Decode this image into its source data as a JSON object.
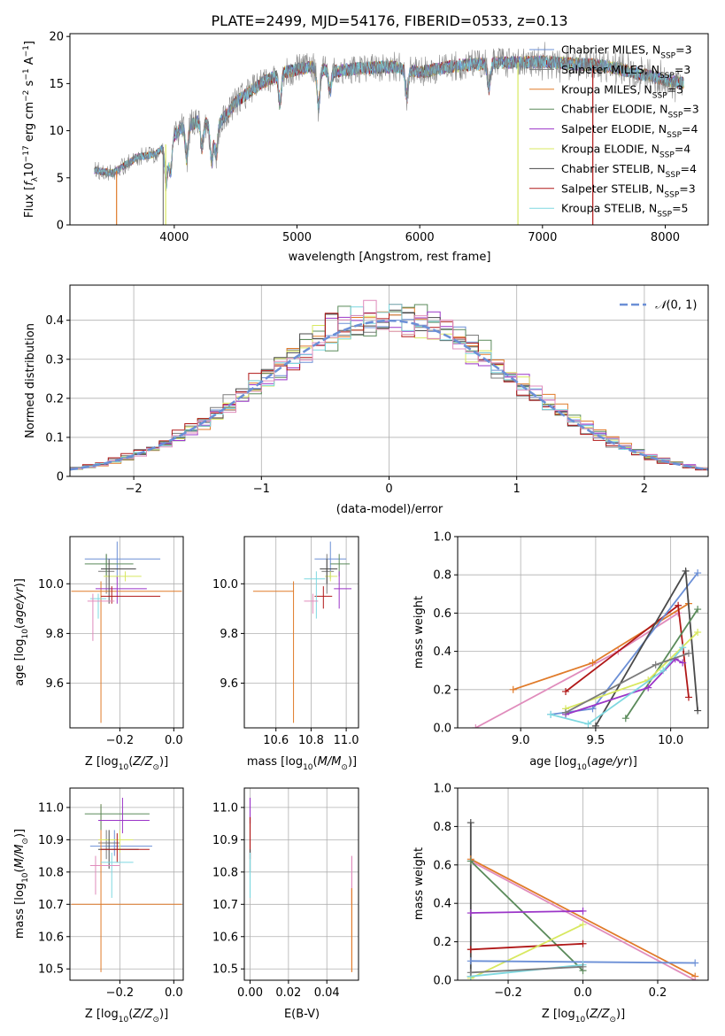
{
  "title": "PLATE=2499, MJD=54176, FIBERID=0533, z=0.13",
  "colors": {
    "chabrier_miles": "#6b8fd6",
    "salpeter_miles": "#7b7b7b",
    "kroupa_miles": "#e07b2a",
    "chabrier_elodie": "#5a8a5a",
    "salpeter_elodie": "#9b35c8",
    "kroupa_elodie": "#d8e860",
    "chabrier_stelib": "#4a4a4a",
    "salpeter_stelib": "#b01818",
    "kroupa_stelib": "#7ed8e0",
    "pink": "#e08cbc",
    "normal": "#6b8fd6"
  },
  "chart_data": [
    {
      "type": "line",
      "id": "spectrum",
      "xlabel": "wavelength [Angstrom, rest frame]",
      "ylabel": "Flux [f_λ10^-17 erg cm^-2 s^-1 A^-1]",
      "xlim": [
        3150,
        8350
      ],
      "ylim": [
        0,
        20.3
      ],
      "xticks": [
        4000,
        5000,
        6000,
        7000,
        8000
      ],
      "yticks": [
        0,
        5,
        10,
        15,
        20
      ],
      "legend_position": "top-right",
      "series": [
        {
          "name": "Chabrier MILES, N_SSP=3"
        },
        {
          "name": "Salpeter MILES, N_SSP=3"
        },
        {
          "name": "Kroupa MILES, N_SSP=3"
        },
        {
          "name": "Chabrier ELODIE, N_SSP=3"
        },
        {
          "name": "Salpeter ELODIE, N_SSP=4"
        },
        {
          "name": "Kroupa ELODIE, N_SSP=4"
        },
        {
          "name": "Chabrier STELIB, N_SSP=4"
        },
        {
          "name": "Salpeter STELIB, N_SSP=3"
        },
        {
          "name": "Kroupa STELIB, N_SSP=5"
        }
      ],
      "continuum": [
        [
          3350,
          5.8
        ],
        [
          3500,
          5.5
        ],
        [
          3700,
          7.2
        ],
        [
          3850,
          7.5
        ],
        [
          3950,
          8.8
        ],
        [
          4050,
          10.2
        ],
        [
          4200,
          11.0
        ],
        [
          4350,
          10.5
        ],
        [
          4500,
          13.0
        ],
        [
          4700,
          15.0
        ],
        [
          4900,
          16.2
        ],
        [
          5100,
          16.8
        ],
        [
          5300,
          16.3
        ],
        [
          5500,
          16.6
        ],
        [
          5800,
          16.8
        ],
        [
          6000,
          16.2
        ],
        [
          6300,
          16.9
        ],
        [
          6600,
          17.2
        ],
        [
          7000,
          17.3
        ],
        [
          7500,
          16.9
        ],
        [
          7800,
          16.0
        ],
        [
          8000,
          15.4
        ],
        [
          8150,
          15.0
        ]
      ],
      "dips": [
        [
          3934,
          4.2
        ],
        [
          3969,
          3.5
        ],
        [
          4102,
          3.2
        ],
        [
          4226,
          2.5
        ],
        [
          4305,
          3.8
        ],
        [
          4341,
          3.0
        ],
        [
          4861,
          3.0
        ],
        [
          5175,
          4.0
        ],
        [
          5270,
          2.0
        ],
        [
          5895,
          2.8
        ],
        [
          6563,
          2.5
        ]
      ],
      "glitches": [
        [
          3530,
          "kroupa_miles"
        ],
        [
          3910,
          "salpeter_miles"
        ],
        [
          3930,
          "kroupa_elodie"
        ],
        [
          6800,
          "kroupa_elodie"
        ],
        [
          7410,
          "salpeter_stelib"
        ]
      ]
    },
    {
      "type": "bar",
      "id": "residual-histogram",
      "xlabel": "(data-model)/error",
      "ylabel": "Normed distribution",
      "xlim": [
        -2.5,
        2.5
      ],
      "ylim": [
        0,
        0.49
      ],
      "xticks": [
        -2,
        -1,
        0,
        1,
        2
      ],
      "yticks": [
        0.0,
        0.1,
        0.2,
        0.3,
        0.4
      ],
      "legend_position": "top-right",
      "legend": "N(0,1)",
      "bin_width": 0.1
    },
    {
      "type": "scatter",
      "id": "age-vs-Z",
      "xlabel": "Z [log10(Z/Z_sun)]",
      "ylabel": "age  [log10(age/yr)]",
      "xlim": [
        -0.385,
        0.035
      ],
      "ylim": [
        9.42,
        10.19
      ],
      "xticks": [
        -0.2,
        0.0
      ],
      "yticks": [
        9.6,
        9.8,
        10.0
      ],
      "points": [
        {
          "c": "chabrier_miles",
          "x": -0.21,
          "y": 10.1,
          "xe": [
            -0.33,
            -0.05
          ],
          "ye": [
            10.02,
            10.17
          ]
        },
        {
          "c": "salpeter_miles",
          "x": -0.25,
          "y": 10.05,
          "xe": [
            -0.28,
            -0.22
          ],
          "ye": [
            9.96,
            10.12
          ]
        },
        {
          "c": "kroupa_miles",
          "x": -0.27,
          "y": 9.97,
          "xe": [
            -0.38,
            0.03
          ],
          "ye": [
            9.44,
            10.01
          ]
        },
        {
          "c": "chabrier_elodie",
          "x": -0.25,
          "y": 10.08,
          "xe": [
            -0.33,
            -0.15
          ],
          "ye": [
            10.03,
            10.12
          ]
        },
        {
          "c": "salpeter_elodie",
          "x": -0.21,
          "y": 9.98,
          "xe": [
            -0.29,
            -0.1
          ],
          "ye": [
            9.92,
            10.03
          ]
        },
        {
          "c": "kroupa_elodie",
          "x": -0.18,
          "y": 10.03,
          "xe": [
            -0.26,
            -0.12
          ],
          "ye": [
            10.01,
            10.05
          ]
        },
        {
          "c": "chabrier_stelib",
          "x": -0.24,
          "y": 10.06,
          "xe": [
            -0.27,
            -0.14
          ],
          "ye": [
            9.92,
            10.1
          ]
        },
        {
          "c": "salpeter_stelib",
          "x": -0.23,
          "y": 9.95,
          "xe": [
            -0.27,
            -0.05
          ],
          "ye": [
            9.92,
            9.99
          ]
        },
        {
          "c": "kroupa_stelib",
          "x": -0.28,
          "y": 9.94,
          "xe": [
            -0.31,
            -0.25
          ],
          "ye": [
            9.86,
            9.96
          ]
        },
        {
          "c": "pink",
          "x": -0.3,
          "y": 9.93,
          "xe": [
            -0.32,
            -0.22
          ],
          "ye": [
            9.77,
            9.96
          ]
        }
      ]
    },
    {
      "type": "scatter",
      "id": "age-vs-mass",
      "xlabel": "mass [log10(M/M_sun)]",
      "ylabel": "",
      "xlim": [
        10.42,
        11.07
      ],
      "ylim": [
        9.42,
        10.19
      ],
      "xticks": [
        10.6,
        10.8,
        11.0
      ],
      "yticks": [
        9.6,
        9.8,
        10.0
      ],
      "points": [
        {
          "c": "chabrier_miles",
          "x": 10.91,
          "y": 10.1,
          "xe": [
            10.82,
            11.0
          ],
          "ye": [
            10.02,
            10.17
          ]
        },
        {
          "c": "salpeter_miles",
          "x": 10.89,
          "y": 10.05,
          "xe": [
            10.86,
            10.93
          ],
          "ye": [
            9.96,
            10.12
          ]
        },
        {
          "c": "kroupa_miles",
          "x": 10.7,
          "y": 9.97,
          "xe": [
            10.47,
            10.7
          ],
          "ye": [
            9.44,
            10.01
          ]
        },
        {
          "c": "chabrier_elodie",
          "x": 10.96,
          "y": 10.08,
          "xe": [
            10.91,
            11.02
          ],
          "ye": [
            10.03,
            10.12
          ]
        },
        {
          "c": "salpeter_elodie",
          "x": 10.96,
          "y": 9.98,
          "xe": [
            10.93,
            11.03
          ],
          "ye": [
            9.9,
            10.05
          ]
        },
        {
          "c": "kroupa_elodie",
          "x": 10.91,
          "y": 10.03,
          "xe": [
            10.88,
            10.95
          ],
          "ye": [
            10.01,
            10.05
          ]
        },
        {
          "c": "chabrier_stelib",
          "x": 10.89,
          "y": 10.06,
          "xe": [
            10.85,
            10.95
          ],
          "ye": [
            10.0,
            10.1
          ]
        },
        {
          "c": "salpeter_stelib",
          "x": 10.87,
          "y": 9.95,
          "xe": [
            10.82,
            10.92
          ],
          "ye": [
            9.9,
            9.99
          ]
        },
        {
          "c": "kroupa_stelib",
          "x": 10.83,
          "y": 10.02,
          "xe": [
            10.76,
            10.88
          ],
          "ye": [
            9.86,
            10.05
          ]
        },
        {
          "c": "pink",
          "x": 10.81,
          "y": 9.93,
          "xe": [
            10.76,
            10.84
          ],
          "ye": [
            9.88,
            9.96
          ]
        }
      ]
    },
    {
      "type": "line",
      "id": "weight-vs-age",
      "xlabel": "age  [log10(age/yr)]",
      "ylabel": "mass weight",
      "xlim": [
        8.58,
        10.25
      ],
      "ylim": [
        0,
        1.0
      ],
      "xticks": [
        9.0,
        9.5,
        10.0
      ],
      "yticks": [
        0.0,
        0.2,
        0.4,
        0.6,
        0.8,
        1.0
      ],
      "series": [
        {
          "c": "pink",
          "points": [
            [
              8.7,
              0.0
            ],
            [
              9.65,
              0.4
            ],
            [
              10.05,
              0.6
            ]
          ]
        },
        {
          "c": "kroupa_miles",
          "points": [
            [
              8.95,
              0.2
            ],
            [
              9.48,
              0.34
            ],
            [
              10.12,
              0.65
            ]
          ]
        },
        {
          "c": "salpeter_stelib",
          "points": [
            [
              9.3,
              0.19
            ],
            [
              10.05,
              0.64
            ],
            [
              10.12,
              0.16
            ]
          ]
        },
        {
          "c": "chabrier_miles",
          "points": [
            [
              9.2,
              0.07
            ],
            [
              9.48,
              0.1
            ],
            [
              10.18,
              0.81
            ]
          ]
        },
        {
          "c": "chabrier_stelib",
          "points": [
            [
              9.5,
              0.01
            ],
            [
              10.1,
              0.82
            ],
            [
              10.18,
              0.09
            ]
          ]
        },
        {
          "c": "chabrier_elodie",
          "points": [
            [
              9.7,
              0.05
            ],
            [
              10.18,
              0.62
            ]
          ]
        },
        {
          "c": "salpeter_elodie",
          "points": [
            [
              9.3,
              0.07
            ],
            [
              9.85,
              0.21
            ],
            [
              10.03,
              0.36
            ],
            [
              10.08,
              0.34
            ]
          ]
        },
        {
          "c": "kroupa_elodie",
          "points": [
            [
              9.3,
              0.1
            ],
            [
              9.85,
              0.25
            ],
            [
              10.18,
              0.5
            ]
          ]
        },
        {
          "c": "kroupa_stelib",
          "points": [
            [
              9.2,
              0.07
            ],
            [
              9.45,
              0.02
            ],
            [
              9.95,
              0.3
            ],
            [
              10.08,
              0.42
            ]
          ]
        },
        {
          "c": "salpeter_miles",
          "points": [
            [
              9.3,
              0.08
            ],
            [
              9.9,
              0.33
            ],
            [
              10.12,
              0.39
            ]
          ]
        }
      ]
    },
    {
      "type": "scatter",
      "id": "mass-vs-Z",
      "xlabel": "Z [log10(Z/Z_sun)]",
      "ylabel": "mass [log10(M/M_sun)]",
      "xlim": [
        -0.385,
        0.035
      ],
      "ylim": [
        10.465,
        11.06
      ],
      "xticks": [
        -0.2,
        0.0
      ],
      "yticks": [
        10.5,
        10.6,
        10.7,
        10.8,
        10.9,
        11.0
      ],
      "points": [
        {
          "c": "chabrier_miles",
          "x": -0.22,
          "y": 10.88,
          "xe": [
            -0.31,
            -0.08
          ],
          "ye": [
            10.85,
            10.93
          ]
        },
        {
          "c": "salpeter_miles",
          "x": -0.25,
          "y": 10.89,
          "xe": [
            -0.28,
            -0.2
          ],
          "ye": [
            10.84,
            10.93
          ]
        },
        {
          "c": "kroupa_miles",
          "x": -0.27,
          "y": 10.7,
          "xe": [
            -0.38,
            0.03
          ],
          "ye": [
            10.49,
            11.01
          ]
        },
        {
          "c": "chabrier_elodie",
          "x": -0.27,
          "y": 10.98,
          "xe": [
            -0.33,
            -0.09
          ],
          "ye": [
            10.93,
            11.01
          ]
        },
        {
          "c": "salpeter_elodie",
          "x": -0.19,
          "y": 10.96,
          "xe": [
            -0.28,
            -0.09
          ],
          "ye": [
            10.92,
            11.03
          ]
        },
        {
          "c": "kroupa_elodie",
          "x": -0.2,
          "y": 10.9,
          "xe": [
            -0.28,
            -0.15
          ],
          "ye": [
            10.86,
            10.93
          ]
        },
        {
          "c": "chabrier_stelib",
          "x": -0.24,
          "y": 10.87,
          "xe": [
            -0.28,
            -0.13
          ],
          "ye": [
            10.81,
            10.93
          ]
        },
        {
          "c": "salpeter_stelib",
          "x": -0.21,
          "y": 10.87,
          "xe": [
            -0.27,
            -0.09
          ],
          "ye": [
            10.83,
            10.92
          ]
        },
        {
          "c": "kroupa_stelib",
          "x": -0.23,
          "y": 10.83,
          "xe": [
            -0.27,
            -0.15
          ],
          "ye": [
            10.72,
            10.86
          ]
        },
        {
          "c": "pink",
          "x": -0.29,
          "y": 10.82,
          "xe": [
            -0.31,
            -0.2
          ],
          "ye": [
            10.73,
            10.85
          ]
        }
      ]
    },
    {
      "type": "scatter",
      "id": "mass-vs-EBV",
      "xlabel": "E(B-V)",
      "ylabel": "",
      "xlim": [
        -0.003,
        0.0565
      ],
      "ylim": [
        10.465,
        11.06
      ],
      "xticks": [
        0.0,
        0.02,
        0.04
      ],
      "yticks": [
        10.5,
        10.6,
        10.7,
        10.8,
        10.9,
        11.0
      ],
      "segments": [
        {
          "c": "salpeter_elodie",
          "x": 0.0,
          "ye": [
            10.95,
            11.03
          ]
        },
        {
          "c": "salpeter_stelib",
          "x": 0.0,
          "ye": [
            10.84,
            10.97
          ]
        },
        {
          "c": "chabrier_stelib",
          "x": 0.0,
          "ye": [
            10.8,
            10.87
          ]
        },
        {
          "c": "kroupa_stelib",
          "x": 0.0,
          "ye": [
            10.72,
            10.86
          ]
        },
        {
          "c": "pink",
          "x": 0.053,
          "ye": [
            10.7,
            10.85
          ]
        },
        {
          "c": "kroupa_miles",
          "x": 0.053,
          "ye": [
            10.49,
            10.75
          ]
        }
      ]
    },
    {
      "type": "line",
      "id": "weight-vs-Z",
      "xlabel": "Z [log10(Z/Z_sun)]",
      "ylabel": "mass weight",
      "xlim": [
        -0.335,
        0.335
      ],
      "ylim": [
        0,
        1.0
      ],
      "xticks": [
        -0.2,
        0.0,
        0.2
      ],
      "yticks": [
        0.0,
        0.2,
        0.4,
        0.6,
        0.8,
        1.0
      ],
      "series": [
        {
          "c": "chabrier_stelib",
          "points": [
            [
              -0.3,
              0.82
            ],
            [
              -0.3,
              0.02
            ]
          ]
        },
        {
          "c": "kroupa_miles",
          "points": [
            [
              -0.3,
              0.63
            ],
            [
              0.3,
              0.02
            ]
          ]
        },
        {
          "c": "pink",
          "points": [
            [
              -0.3,
              0.62
            ],
            [
              0.3,
              0.0
            ]
          ]
        },
        {
          "c": "chabrier_elodie",
          "points": [
            [
              -0.3,
              0.62
            ],
            [
              0.0,
              0.05
            ]
          ]
        },
        {
          "c": "salpeter_elodie",
          "points": [
            [
              -0.3,
              0.35
            ],
            [
              0.0,
              0.36
            ]
          ]
        },
        {
          "c": "salpeter_stelib",
          "points": [
            [
              -0.3,
              0.16
            ],
            [
              0.0,
              0.19
            ]
          ]
        },
        {
          "c": "kroupa_elodie",
          "points": [
            [
              -0.3,
              0.01
            ],
            [
              0.0,
              0.29
            ]
          ]
        },
        {
          "c": "chabrier_miles",
          "points": [
            [
              -0.3,
              0.1
            ],
            [
              0.3,
              0.09
            ]
          ]
        },
        {
          "c": "kroupa_stelib",
          "points": [
            [
              -0.3,
              0.02
            ],
            [
              0.0,
              0.08
            ]
          ]
        },
        {
          "c": "salpeter_miles",
          "points": [
            [
              -0.3,
              0.04
            ],
            [
              0.0,
              0.07
            ]
          ]
        }
      ]
    }
  ]
}
